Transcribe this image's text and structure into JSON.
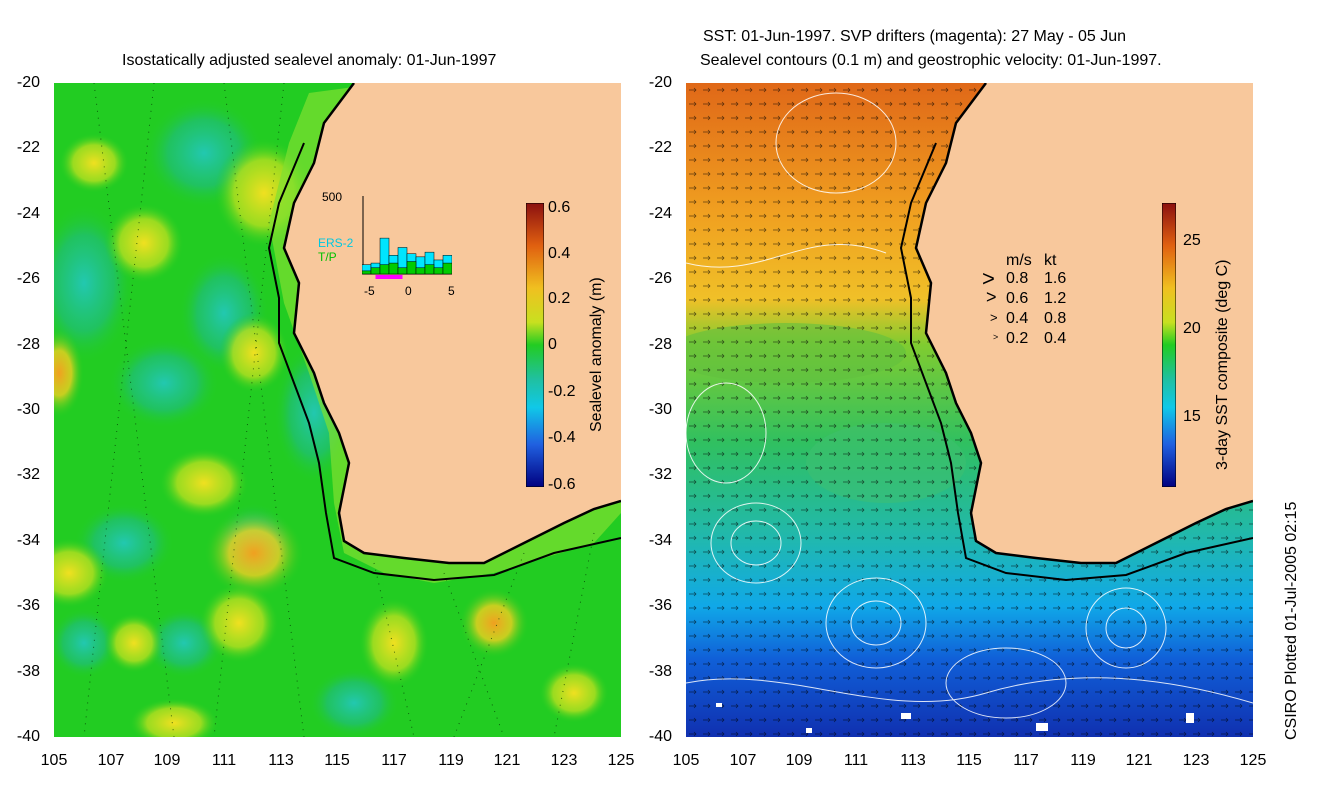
{
  "left_panel": {
    "title": "Isostatically adjusted sealevel anomaly: 01-Jun-1997",
    "y_ticks": [
      "-20",
      "-22",
      "-24",
      "-26",
      "-28",
      "-30",
      "-32",
      "-34",
      "-36",
      "-38",
      "-40"
    ],
    "x_ticks": [
      "105",
      "107",
      "109",
      "111",
      "113",
      "115",
      "117",
      "119",
      "121",
      "123",
      "125"
    ],
    "colorbar": {
      "label": "Sealevel anomaly (m)",
      "ticks": [
        "0.6",
        "0.4",
        "0.2",
        "0",
        "-0.2",
        "-0.4",
        "-0.6"
      ]
    },
    "inset": {
      "max_label": "500",
      "legend_ers": "ERS-2",
      "legend_tp": "T/P",
      "x_ticks": [
        "-5",
        "0",
        "5"
      ],
      "ers_values": [
        60,
        70,
        230,
        120,
        170,
        130,
        110,
        140,
        90,
        120
      ],
      "tp_values": [
        20,
        40,
        60,
        70,
        40,
        80,
        40,
        60,
        40,
        70
      ],
      "colors": {
        "ers": "#00e5ff",
        "tp": "#00cc00",
        "window": "#ff00ff"
      }
    },
    "colors": {
      "land": "#f8c89c",
      "ocean_mid": "#22cc22"
    }
  },
  "right_panel": {
    "title_line1": "SST: 01-Jun-1997. SVP drifters (magenta): 27 May - 05 Jun",
    "title_line2": "Sealevel contours (0.1 m) and geostrophic velocity: 01-Jun-1997.",
    "y_ticks": [
      "-20",
      "-22",
      "-24",
      "-26",
      "-28",
      "-30",
      "-32",
      "-34",
      "-36",
      "-38",
      "-40"
    ],
    "x_ticks": [
      "105",
      "107",
      "109",
      "111",
      "113",
      "115",
      "117",
      "119",
      "121",
      "123",
      "125"
    ],
    "velocity_legend": {
      "header_ms": "m/s",
      "header_kt": "kt",
      "rows": [
        {
          "ms": "0.8",
          "kt": "1.6"
        },
        {
          "ms": "0.6",
          "kt": "1.2"
        },
        {
          "ms": "0.4",
          "kt": "0.8"
        },
        {
          "ms": "0.2",
          "kt": "0.4"
        }
      ]
    },
    "colorbar": {
      "label": "3-day SST composite (deg C)",
      "ticks": [
        "25",
        "20",
        "15"
      ]
    }
  },
  "credit": "CSIRO Plotted 01-Jul-2005 02:15"
}
